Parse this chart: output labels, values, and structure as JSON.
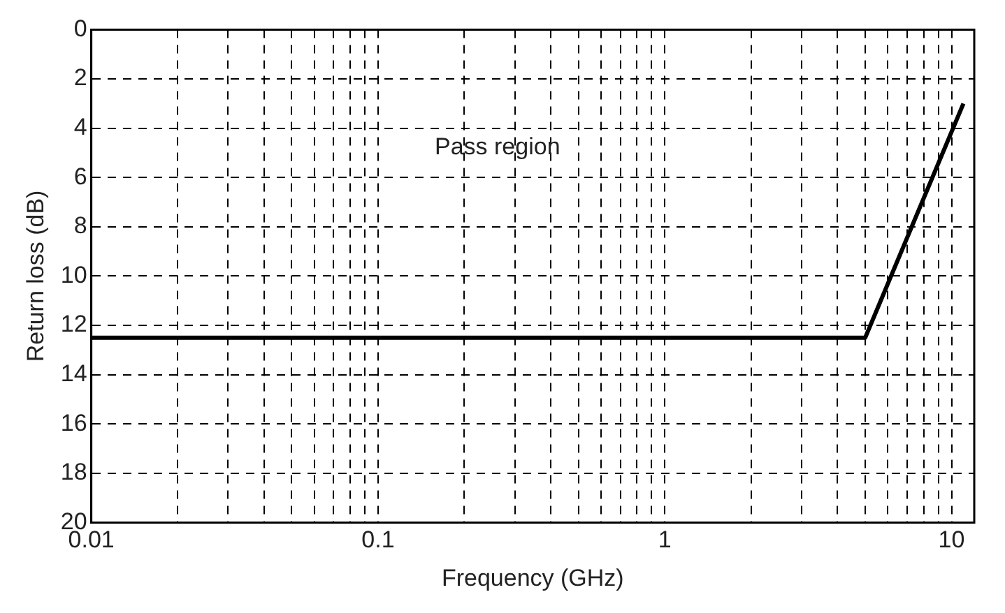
{
  "chart_data": {
    "type": "line",
    "xlabel": "Frequency (GHz)",
    "ylabel": "Return loss (dB)",
    "annotations": [
      "Pass region"
    ],
    "x": [
      0.01,
      5,
      11
    ],
    "series": [
      {
        "color": "#000000",
        "values": [
          12.5,
          12.5,
          3
        ]
      }
    ],
    "log": "x",
    "xlim": [
      0.01,
      12
    ],
    "ylim": [
      20,
      0
    ],
    "xticks": [
      0.01,
      {
        "value": 0.02,
        "label": null
      },
      {
        "value": 0.03,
        "label": null
      },
      {
        "value": 0.04,
        "label": null
      },
      {
        "value": 0.05,
        "label": null
      },
      {
        "value": 0.06,
        "label": null
      },
      {
        "value": 0.07,
        "label": null
      },
      {
        "value": 0.08,
        "label": null
      },
      {
        "value": 0.09,
        "label": null
      },
      0.1,
      {
        "value": 0.2,
        "label": null
      },
      {
        "value": 0.3,
        "label": null
      },
      {
        "value": 0.4,
        "label": null
      },
      {
        "value": 0.5,
        "label": null
      },
      {
        "value": 0.6,
        "label": null
      },
      {
        "value": 0.7,
        "label": null
      },
      {
        "value": 0.8,
        "label": null
      },
      {
        "value": 0.9,
        "label": null
      },
      1,
      {
        "value": 2,
        "label": null
      },
      {
        "value": 3,
        "label": null
      },
      {
        "value": 4,
        "label": null
      },
      {
        "value": 5,
        "label": null
      },
      {
        "value": 6,
        "label": null
      },
      {
        "value": 7,
        "label": null
      },
      {
        "value": 8,
        "label": null
      },
      {
        "value": 9,
        "label": null
      },
      10
    ],
    "yticks": [
      0,
      2,
      4,
      6,
      8,
      10,
      12,
      14,
      16,
      18,
      20
    ],
    "grid": true,
    "line_style": "solid",
    "marker": "none",
    "legend": false
  }
}
